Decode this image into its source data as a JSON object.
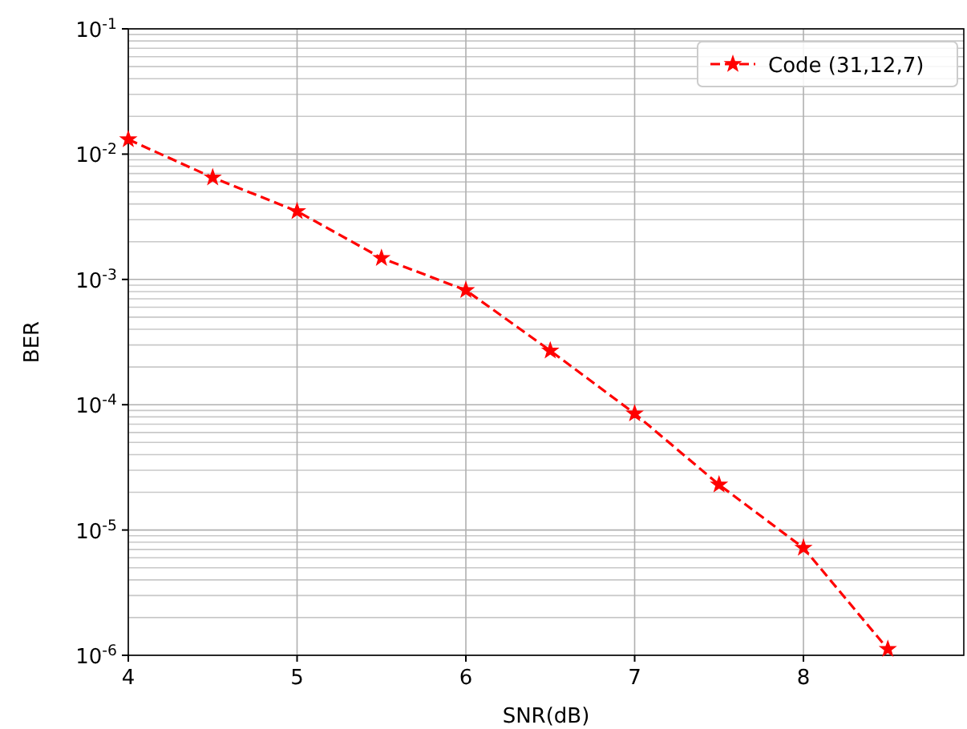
{
  "chart_data": {
    "type": "line",
    "xlabel": "SNR(dB)",
    "ylabel": "BER",
    "x": [
      4,
      4.5,
      5,
      5.5,
      6,
      6.5,
      7,
      7.5,
      8,
      8.5
    ],
    "series": [
      {
        "name": "Code (31,12,7)",
        "color": "#ff0000",
        "values": [
          0.0131,
          0.0065,
          0.0035,
          0.00148,
          0.00082,
          0.00027,
          8.5e-05,
          2.3e-05,
          7.2e-06,
          1.12e-06
        ]
      }
    ],
    "log": "y",
    "xlim": [
      4,
      8.95
    ],
    "ylim": [
      1e-06,
      0.1
    ],
    "xticks": [
      4,
      5,
      6,
      7,
      8
    ],
    "yticks": [
      {
        "value": 1e-06,
        "label": "10$^{-6}$"
      },
      {
        "value": 1e-05,
        "label": "10$^{-5}$"
      },
      {
        "value": 0.0001,
        "label": "10$^{-4}$"
      },
      {
        "value": 0.001,
        "label": "10$^{-3}$"
      },
      {
        "value": 0.01,
        "label": "10$^{-2}$"
      },
      {
        "value": 0.1,
        "label": "10$^{-1}$"
      }
    ],
    "grid": true,
    "legend": "top right",
    "marker": "star",
    "line_style": "dashed"
  }
}
